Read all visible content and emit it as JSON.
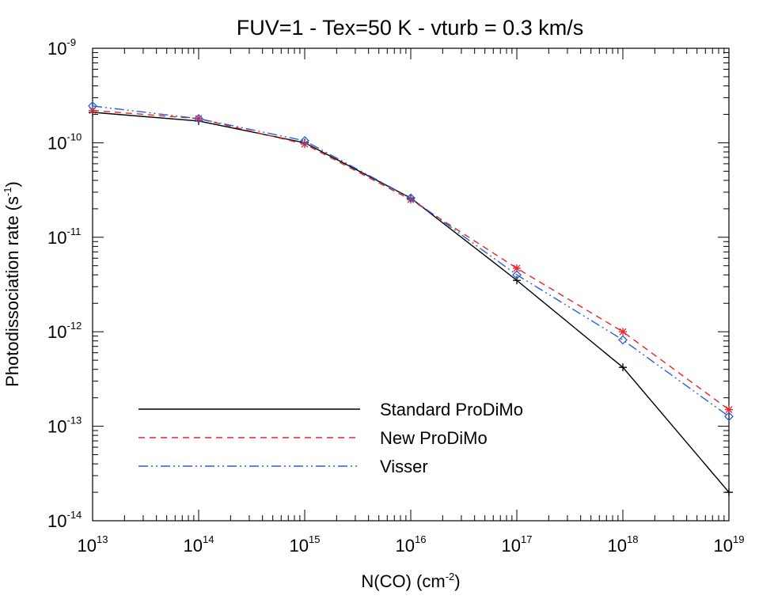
{
  "chart_data": {
    "type": "line",
    "title": "FUV=1 - Tex=50 K - vturb = 0.3 km/s",
    "xlabel": {
      "base": "N(CO)  (cm",
      "sup": "-2",
      "close": ")"
    },
    "ylabel": {
      "base": "Photodissociation rate (s",
      "sup": "-1",
      "close": ")"
    },
    "xscale": "log",
    "yscale": "log",
    "xlim": [
      10000000000000.0,
      1e+19
    ],
    "ylim": [
      1e-14,
      1e-09
    ],
    "x_ticks": [
      {
        "value": 10000000000000.0,
        "base": "10",
        "exp": "13"
      },
      {
        "value": 100000000000000.0,
        "base": "10",
        "exp": "14"
      },
      {
        "value": 1000000000000000.0,
        "base": "10",
        "exp": "15"
      },
      {
        "value": 1e+16,
        "base": "10",
        "exp": "16"
      },
      {
        "value": 1e+17,
        "base": "10",
        "exp": "17"
      },
      {
        "value": 1e+18,
        "base": "10",
        "exp": "18"
      },
      {
        "value": 1e+19,
        "base": "10",
        "exp": "19"
      }
    ],
    "y_ticks": [
      {
        "value": 1e-14,
        "base": "10",
        "exp": "-14"
      },
      {
        "value": 1e-13,
        "base": "10",
        "exp": "-13"
      },
      {
        "value": 1e-12,
        "base": "10",
        "exp": "-12"
      },
      {
        "value": 1e-11,
        "base": "10",
        "exp": "-11"
      },
      {
        "value": 1e-10,
        "base": "10",
        "exp": "-10"
      },
      {
        "value": 1e-09,
        "base": "10",
        "exp": "-9"
      }
    ],
    "grid": false,
    "legend_position": "bottom-left",
    "x": [
      10000000000000.0,
      100000000000000.0,
      1000000000000000.0,
      1e+16,
      1e+17,
      1e+18,
      1e+19
    ],
    "series": [
      {
        "name": "Standard ProDiMo",
        "color": "#000000",
        "dash": "solid",
        "marker": "plus",
        "values": [
          2.1e-10,
          1.7e-10,
          1e-10,
          2.6e-11,
          3.5e-12,
          4.2e-13,
          2e-14
        ]
      },
      {
        "name": "New ProDiMo",
        "color": "#e8242a",
        "dash": "dashed",
        "marker": "asterisk",
        "values": [
          2.2e-10,
          1.8e-10,
          9.7e-11,
          2.5e-11,
          4.7e-12,
          1e-12,
          1.5e-13
        ]
      },
      {
        "name": "Visser",
        "color": "#2b5fd9",
        "dash": "dash-dot-dot",
        "marker": "diamond",
        "values": [
          2.45e-10,
          1.8e-10,
          1.05e-10,
          2.6e-11,
          4e-12,
          8.2e-13,
          1.27e-13
        ]
      }
    ]
  }
}
